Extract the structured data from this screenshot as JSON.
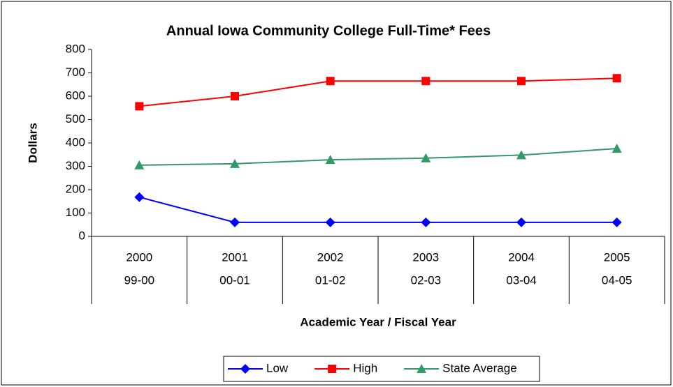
{
  "chart_data": {
    "type": "line",
    "title": "Annual Iowa Community College Full-Time* Fees",
    "y_label": "Dollars",
    "x_label": "Academic Year / Fiscal Year",
    "categories": [
      "2000",
      "2001",
      "2002",
      "2003",
      "2004",
      "2005"
    ],
    "categories2": [
      "99-00",
      "00-01",
      "01-02",
      "02-03",
      "03-04",
      "04-05"
    ],
    "series": [
      {
        "name": "Low",
        "color": "#0000ff",
        "marker": "diamond",
        "values": [
          168,
          60,
          60,
          60,
          60,
          60
        ]
      },
      {
        "name": "High",
        "color": "#ff0000",
        "marker": "square",
        "values": [
          557,
          600,
          665,
          665,
          665,
          677
        ]
      },
      {
        "name": "State Average",
        "color": "#339966",
        "marker": "triangle",
        "values": [
          305,
          311,
          328,
          335,
          348,
          376
        ]
      }
    ],
    "ylim": [
      0,
      800
    ],
    "yticks": [
      0,
      100,
      200,
      300,
      400,
      500,
      600,
      700,
      800
    ],
    "grid": false,
    "legend": "bottom"
  }
}
